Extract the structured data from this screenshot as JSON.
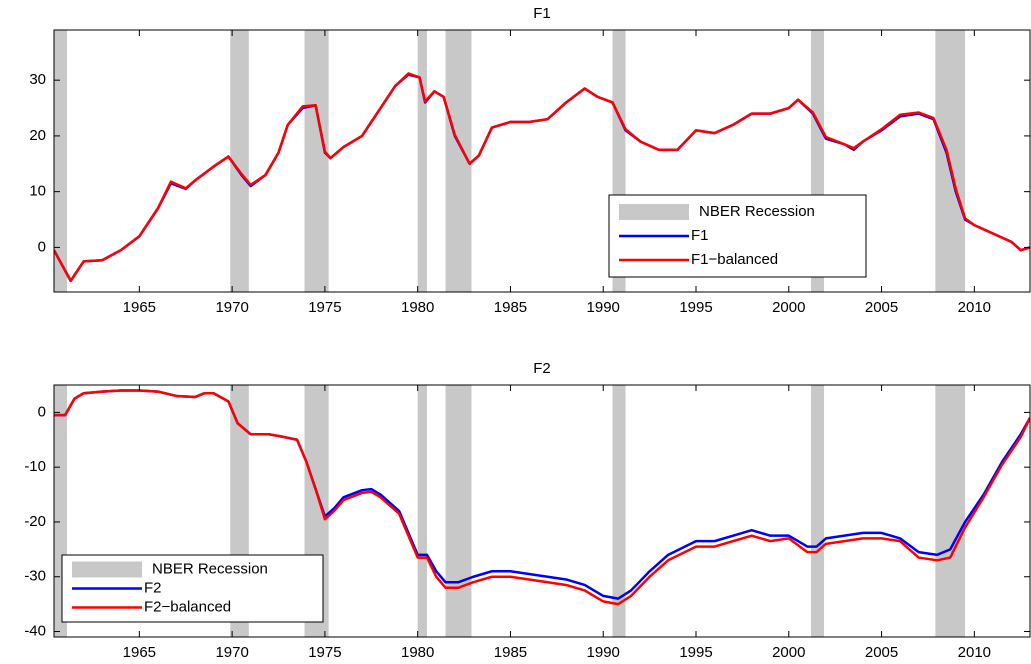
{
  "chart_data": [
    {
      "type": "line",
      "title": "F1",
      "x": [
        1960.4,
        1961.3,
        1962,
        1963,
        1964,
        1965,
        1966,
        1966.7,
        1967.5,
        1968,
        1969,
        1969.8,
        1970.5,
        1971,
        1971.8,
        1972.5,
        1973,
        1973.8,
        1974.5,
        1975,
        1975.3,
        1976,
        1977,
        1978,
        1978.8,
        1979.5,
        1980.1,
        1980.4,
        1980.9,
        1981.4,
        1982,
        1982.8,
        1983.3,
        1984,
        1985,
        1986,
        1987,
        1988,
        1989,
        1989.7,
        1990.5,
        1991.2,
        1992,
        1993,
        1994,
        1995,
        1996,
        1997,
        1998,
        1999,
        2000,
        2000.5,
        2001.3,
        2002,
        2003,
        2003.5,
        2004,
        2005,
        2006,
        2007,
        2007.8,
        2008.5,
        2009,
        2009.5,
        2010,
        2011,
        2012,
        2012.5,
        2013
      ],
      "series": [
        {
          "name": "F1",
          "color": "#0000ff",
          "values": [
            -0.5,
            -6,
            -2.5,
            -2.3,
            -0.5,
            2,
            7,
            11.5,
            10.5,
            12,
            14.5,
            16.3,
            13,
            11,
            13,
            17,
            22,
            25,
            25.5,
            17,
            16,
            18,
            20,
            25,
            29,
            31,
            30.5,
            26,
            28,
            27,
            20,
            15,
            16.5,
            21.5,
            22.5,
            22.5,
            23,
            26,
            28.5,
            27,
            26,
            21,
            19,
            17.5,
            17.5,
            21,
            20.5,
            22,
            24,
            24,
            25,
            26.5,
            24,
            19.5,
            18.5,
            17.5,
            19,
            21,
            23.5,
            24,
            23,
            17,
            10,
            5,
            4,
            2.5,
            1,
            -0.5,
            0
          ]
        },
        {
          "name": "F1−balanced",
          "color": "#ff0000",
          "values": [
            -0.5,
            -6,
            -2.5,
            -2.3,
            -0.5,
            2,
            7,
            11.8,
            10.6,
            12,
            14.5,
            16.3,
            13.2,
            11.2,
            13,
            17,
            22,
            25.3,
            25.5,
            17.2,
            16,
            18,
            20,
            25,
            29,
            31.2,
            30.5,
            26.2,
            28,
            27,
            20.2,
            15,
            16.5,
            21.5,
            22.5,
            22.5,
            23,
            26,
            28.5,
            27,
            26,
            21.2,
            19,
            17.5,
            17.5,
            21,
            20.5,
            22,
            24,
            24,
            25,
            26.5,
            24.2,
            19.8,
            18.5,
            17.8,
            19,
            21.2,
            23.8,
            24.2,
            23.2,
            17.5,
            10.5,
            5.2,
            4,
            2.5,
            1,
            -0.5,
            0
          ]
        }
      ],
      "shading": {
        "name": "NBER Recession",
        "color": "#c8c8c8",
        "periods": [
          [
            1960.4,
            1961.1
          ],
          [
            1969.9,
            1970.9
          ],
          [
            1973.9,
            1975.2
          ],
          [
            1980.0,
            1980.5
          ],
          [
            1981.5,
            1982.9
          ],
          [
            1990.5,
            1991.2
          ],
          [
            2001.2,
            2001.9
          ],
          [
            2007.9,
            2009.5
          ]
        ]
      },
      "xlim": [
        1960.4,
        2013
      ],
      "xticks": [
        1965,
        1970,
        1975,
        1980,
        1985,
        1990,
        1995,
        2000,
        2005,
        2010
      ],
      "ylim": [
        -8,
        39
      ],
      "yticks": [
        0,
        10,
        20,
        30
      ],
      "legend": "southeast"
    },
    {
      "type": "line",
      "title": "F2",
      "x": [
        1960.4,
        1961,
        1961.5,
        1962,
        1963,
        1964,
        1965,
        1966,
        1967,
        1968,
        1968.5,
        1969,
        1969.8,
        1970.3,
        1971,
        1972,
        1972.8,
        1973.5,
        1974,
        1974.5,
        1975,
        1975.5,
        1976,
        1977,
        1977.5,
        1978,
        1979,
        1980,
        1980.5,
        1981,
        1981.5,
        1982.2,
        1983,
        1984,
        1985,
        1986,
        1987,
        1988,
        1989,
        1990,
        1990.8,
        1991.5,
        1992.5,
        1993.5,
        1995,
        1996,
        1997,
        1998,
        1999,
        2000,
        2001,
        2001.5,
        2002,
        2003,
        2004,
        2005,
        2006,
        2007,
        2008,
        2008.7,
        2009.5,
        2010.5,
        2011.5,
        2012.5,
        2013
      ],
      "series": [
        {
          "name": "F2",
          "color": "#0000ff",
          "values": [
            -0.5,
            -0.5,
            2.5,
            3.5,
            3.8,
            4,
            4,
            3.8,
            3,
            2.8,
            3.5,
            3.5,
            2,
            -2,
            -4,
            -4,
            -4.5,
            -5,
            -9,
            -14,
            -19,
            -17.5,
            -15.5,
            -14.2,
            -14,
            -15,
            -18,
            -26,
            -26,
            -29,
            -31,
            -31,
            -30,
            -29,
            -29,
            -29.5,
            -30,
            -30.5,
            -31.5,
            -33.5,
            -34,
            -32.5,
            -29,
            -26,
            -23.5,
            -23.5,
            -22.5,
            -21.5,
            -22.5,
            -22.5,
            -24.5,
            -24.5,
            -23,
            -22.5,
            -22,
            -22,
            -23,
            -25.5,
            -26,
            -25,
            -20,
            -15,
            -9,
            -4,
            -1
          ]
        },
        {
          "name": "F2−balanced",
          "color": "#ff0000",
          "values": [
            -0.5,
            -0.5,
            2.5,
            3.5,
            3.8,
            4,
            4,
            3.8,
            3,
            2.8,
            3.5,
            3.5,
            2,
            -2,
            -4,
            -4,
            -4.5,
            -5,
            -9,
            -14,
            -19.5,
            -18,
            -16,
            -14.7,
            -14.5,
            -15.5,
            -18.5,
            -26.5,
            -26.5,
            -30,
            -32,
            -32,
            -31,
            -30,
            -30,
            -30.5,
            -31,
            -31.5,
            -32.5,
            -34.5,
            -35,
            -33.5,
            -30,
            -27,
            -24.5,
            -24.5,
            -23.5,
            -22.5,
            -23.5,
            -23,
            -25.5,
            -25.5,
            -24,
            -23.5,
            -23,
            -23,
            -23.5,
            -26.5,
            -27,
            -26.5,
            -21,
            -15.5,
            -9.5,
            -4.5,
            -1
          ]
        }
      ],
      "shading": {
        "name": "NBER Recession",
        "color": "#c8c8c8",
        "periods": [
          [
            1960.4,
            1961.1
          ],
          [
            1969.9,
            1970.9
          ],
          [
            1973.9,
            1975.2
          ],
          [
            1980.0,
            1980.5
          ],
          [
            1981.5,
            1982.9
          ],
          [
            1990.5,
            1991.2
          ],
          [
            2001.2,
            2001.9
          ],
          [
            2007.9,
            2009.5
          ]
        ]
      },
      "xlim": [
        1960.4,
        2013
      ],
      "xticks": [
        1965,
        1970,
        1975,
        1980,
        1985,
        1990,
        1995,
        2000,
        2005,
        2010
      ],
      "ylim": [
        -41,
        5
      ],
      "yticks": [
        -40,
        -30,
        -20,
        -10,
        0
      ],
      "legend": "southwest"
    }
  ]
}
